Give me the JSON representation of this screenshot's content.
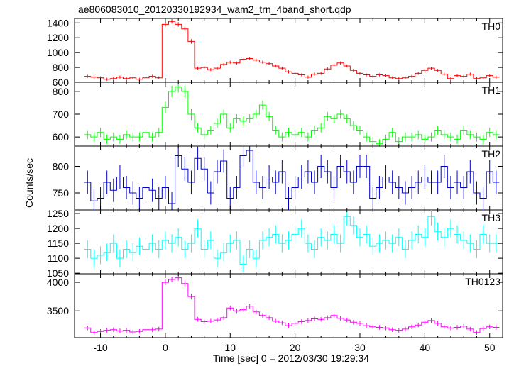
{
  "title": "ae806083010_20120330192934_wam2_trn_4band_short.qdp",
  "ylabel": "Counts/sec",
  "xlabel": "Time [sec] 0 = 2012/03/30 19:29:34",
  "chart_data": [
    {
      "type": "line",
      "name": "TH0",
      "color": "#ff0000",
      "xlim": [
        -14,
        52
      ],
      "ylim": [
        600,
        1460
      ],
      "yticks": [
        600,
        800,
        1000,
        1200,
        1400
      ],
      "bin_width": 1,
      "x": [
        -12,
        -11,
        -10,
        -9,
        -8,
        -7,
        -6,
        -5,
        -4,
        -3,
        -2,
        -1,
        0,
        1,
        2,
        3,
        4,
        5,
        6,
        7,
        8,
        9,
        10,
        11,
        12,
        13,
        14,
        15,
        16,
        17,
        18,
        19,
        20,
        21,
        22,
        23,
        24,
        25,
        26,
        27,
        28,
        29,
        30,
        31,
        32,
        33,
        34,
        35,
        36,
        37,
        38,
        39,
        40,
        41,
        42,
        43,
        44,
        45,
        46,
        47,
        48,
        49,
        50,
        51
      ],
      "y": [
        680,
        670,
        660,
        640,
        650,
        670,
        650,
        660,
        640,
        660,
        680,
        660,
        1380,
        1420,
        1380,
        1320,
        1150,
        790,
        800,
        770,
        790,
        840,
        870,
        860,
        910,
        920,
        900,
        870,
        850,
        820,
        790,
        740,
        720,
        700,
        670,
        710,
        720,
        780,
        830,
        860,
        820,
        760,
        720,
        700,
        680,
        700,
        690,
        660,
        650,
        660,
        680,
        720,
        760,
        790,
        760,
        710,
        650,
        690,
        680,
        710,
        650,
        660,
        690,
        670
      ],
      "err": [
        20,
        20,
        20,
        20,
        20,
        20,
        20,
        20,
        20,
        20,
        20,
        20,
        30,
        30,
        30,
        30,
        30,
        20,
        20,
        20,
        20,
        20,
        20,
        20,
        20,
        20,
        20,
        20,
        20,
        20,
        20,
        20,
        20,
        20,
        20,
        20,
        20,
        20,
        20,
        20,
        20,
        20,
        20,
        20,
        20,
        20,
        20,
        20,
        20,
        20,
        20,
        20,
        20,
        20,
        20,
        20,
        20,
        20,
        20,
        20,
        20,
        20,
        20,
        20
      ]
    },
    {
      "type": "line",
      "name": "TH1",
      "color": "#00ff00",
      "xlim": [
        -14,
        52
      ],
      "ylim": [
        560,
        840
      ],
      "yticks": [
        600,
        700,
        800
      ],
      "bin_width": 1,
      "x": [
        -12,
        -11,
        -10,
        -9,
        -8,
        -7,
        -6,
        -5,
        -4,
        -3,
        -2,
        -1,
        0,
        1,
        2,
        3,
        4,
        5,
        6,
        7,
        8,
        9,
        10,
        11,
        12,
        13,
        14,
        15,
        16,
        17,
        18,
        19,
        20,
        21,
        22,
        23,
        24,
        25,
        26,
        27,
        28,
        29,
        30,
        31,
        32,
        33,
        34,
        35,
        36,
        37,
        38,
        39,
        40,
        41,
        42,
        43,
        44,
        45,
        46,
        47,
        48,
        49,
        50,
        51
      ],
      "y": [
        610,
        600,
        620,
        590,
        600,
        590,
        610,
        600,
        600,
        620,
        600,
        620,
        730,
        800,
        820,
        800,
        700,
        640,
        610,
        630,
        660,
        700,
        640,
        680,
        670,
        680,
        700,
        740,
        690,
        630,
        600,
        620,
        610,
        620,
        600,
        630,
        640,
        690,
        680,
        700,
        680,
        650,
        630,
        600,
        580,
        570,
        590,
        620,
        580,
        600,
        600,
        610,
        590,
        600,
        630,
        610,
        600,
        590,
        630,
        610,
        600,
        590,
        620,
        610
      ],
      "err": [
        20,
        20,
        20,
        20,
        20,
        20,
        20,
        20,
        20,
        20,
        20,
        20,
        25,
        25,
        25,
        25,
        25,
        20,
        20,
        20,
        20,
        20,
        20,
        20,
        20,
        20,
        20,
        20,
        20,
        20,
        20,
        20,
        20,
        20,
        20,
        20,
        20,
        20,
        20,
        20,
        20,
        20,
        20,
        20,
        20,
        20,
        20,
        20,
        20,
        20,
        20,
        20,
        20,
        20,
        20,
        20,
        20,
        20,
        20,
        20,
        20,
        20,
        20,
        20
      ]
    },
    {
      "type": "line",
      "name": "TH2",
      "color": "#0000cc",
      "xlim": [
        -14,
        52
      ],
      "ylim": [
        718,
        838
      ],
      "yticks": [
        750,
        800
      ],
      "bin_width": 1,
      "x": [
        -12,
        -11,
        -10,
        -9,
        -8,
        -7,
        -6,
        -5,
        -4,
        -3,
        -2,
        -1,
        0,
        1,
        2,
        3,
        4,
        5,
        6,
        7,
        8,
        9,
        10,
        11,
        12,
        13,
        14,
        15,
        16,
        17,
        18,
        19,
        20,
        21,
        22,
        23,
        24,
        25,
        26,
        27,
        28,
        29,
        30,
        31,
        32,
        33,
        34,
        35,
        36,
        37,
        38,
        39,
        40,
        41,
        42,
        43,
        44,
        45,
        46,
        47,
        48,
        49,
        50,
        51
      ],
      "y": [
        770,
        735,
        740,
        770,
        755,
        780,
        760,
        750,
        740,
        760,
        755,
        740,
        760,
        730,
        820,
        795,
        770,
        815,
        795,
        750,
        790,
        810,
        740,
        760,
        820,
        830,
        770,
        760,
        780,
        770,
        790,
        740,
        760,
        780,
        790,
        770,
        800,
        790,
        760,
        800,
        790,
        770,
        800,
        800,
        740,
        760,
        780,
        770,
        760,
        750,
        760,
        770,
        780,
        770,
        770,
        800,
        760,
        770,
        760,
        790,
        750,
        740,
        790,
        770
      ],
      "err": [
        22,
        22,
        22,
        22,
        22,
        22,
        22,
        22,
        22,
        22,
        22,
        22,
        22,
        22,
        22,
        22,
        22,
        22,
        22,
        22,
        22,
        22,
        22,
        22,
        22,
        22,
        22,
        22,
        22,
        22,
        22,
        22,
        22,
        22,
        22,
        22,
        22,
        22,
        22,
        22,
        22,
        22,
        22,
        22,
        22,
        22,
        22,
        22,
        22,
        22,
        22,
        22,
        22,
        22,
        22,
        22,
        22,
        22,
        22,
        22,
        22,
        22,
        22,
        22
      ]
    },
    {
      "type": "line",
      "name": "TH3",
      "color": "#00ffff",
      "xlim": [
        -14,
        52
      ],
      "ylim": [
        1048,
        1262
      ],
      "yticks": [
        1050,
        1100,
        1150,
        1200,
        1250
      ],
      "bin_width": 1,
      "x": [
        -12,
        -11,
        -10,
        -9,
        -8,
        -7,
        -6,
        -5,
        -4,
        -3,
        -2,
        -1,
        0,
        1,
        2,
        3,
        4,
        5,
        6,
        7,
        8,
        9,
        10,
        11,
        12,
        13,
        14,
        15,
        16,
        17,
        18,
        19,
        20,
        21,
        22,
        23,
        24,
        25,
        26,
        27,
        28,
        29,
        30,
        31,
        32,
        33,
        34,
        35,
        36,
        37,
        38,
        39,
        40,
        41,
        42,
        43,
        44,
        45,
        46,
        47,
        48,
        49,
        50,
        51
      ],
      "y": [
        1130,
        1100,
        1110,
        1120,
        1150,
        1100,
        1130,
        1120,
        1140,
        1130,
        1150,
        1130,
        1160,
        1150,
        1170,
        1130,
        1150,
        1200,
        1130,
        1160,
        1100,
        1120,
        1150,
        1160,
        1080,
        1130,
        1100,
        1160,
        1170,
        1180,
        1150,
        1160,
        1180,
        1200,
        1150,
        1130,
        1170,
        1160,
        1180,
        1150,
        1240,
        1210,
        1170,
        1180,
        1140,
        1150,
        1160,
        1150,
        1170,
        1130,
        1160,
        1180,
        1170,
        1240,
        1190,
        1170,
        1200,
        1180,
        1160,
        1150,
        1130,
        1180,
        1150,
        1150
      ],
      "err": [
        30,
        30,
        30,
        30,
        30,
        30,
        30,
        30,
        30,
        30,
        30,
        30,
        30,
        30,
        30,
        30,
        30,
        30,
        30,
        30,
        30,
        30,
        30,
        30,
        30,
        30,
        30,
        30,
        30,
        30,
        30,
        30,
        30,
        30,
        30,
        30,
        30,
        30,
        30,
        30,
        30,
        30,
        30,
        30,
        30,
        30,
        30,
        30,
        30,
        30,
        30,
        30,
        30,
        30,
        30,
        30,
        30,
        30,
        30,
        30,
        30,
        30,
        30,
        30
      ]
    },
    {
      "type": "line",
      "name": "TH0123",
      "color": "#ff00ff",
      "xlim": [
        -14,
        52
      ],
      "ylim": [
        3030,
        4150
      ],
      "yticks": [
        3500,
        4000
      ],
      "bin_width": 1,
      "x": [
        -12,
        -11,
        -10,
        -9,
        -8,
        -7,
        -6,
        -5,
        -4,
        -3,
        -2,
        -1,
        0,
        1,
        2,
        3,
        4,
        5,
        6,
        7,
        8,
        9,
        10,
        11,
        12,
        13,
        14,
        15,
        16,
        17,
        18,
        19,
        20,
        21,
        22,
        23,
        24,
        25,
        26,
        27,
        28,
        29,
        30,
        31,
        32,
        33,
        34,
        35,
        36,
        37,
        38,
        39,
        40,
        41,
        42,
        43,
        44,
        45,
        46,
        47,
        48,
        49,
        50,
        51
      ],
      "y": [
        3200,
        3120,
        3140,
        3160,
        3170,
        3150,
        3160,
        3130,
        3140,
        3170,
        3170,
        3180,
        4000,
        4050,
        4080,
        3980,
        3750,
        3350,
        3310,
        3320,
        3340,
        3380,
        3550,
        3500,
        3520,
        3580,
        3480,
        3420,
        3380,
        3320,
        3290,
        3240,
        3280,
        3310,
        3330,
        3360,
        3350,
        3380,
        3420,
        3370,
        3340,
        3300,
        3280,
        3240,
        3220,
        3210,
        3200,
        3170,
        3160,
        3180,
        3220,
        3250,
        3300,
        3330,
        3280,
        3220,
        3200,
        3210,
        3230,
        3180,
        3120,
        3190,
        3220,
        3210
      ],
      "err": [
        40,
        40,
        40,
        40,
        40,
        40,
        40,
        40,
        40,
        40,
        40,
        40,
        50,
        50,
        50,
        50,
        50,
        40,
        40,
        40,
        40,
        40,
        40,
        40,
        40,
        40,
        40,
        40,
        40,
        40,
        40,
        40,
        40,
        40,
        40,
        40,
        40,
        40,
        40,
        40,
        40,
        40,
        40,
        40,
        40,
        40,
        40,
        40,
        40,
        40,
        40,
        40,
        40,
        40,
        40,
        40,
        40,
        40,
        40,
        40,
        40,
        40,
        40,
        40
      ]
    }
  ],
  "xticks": [
    -10,
    0,
    10,
    20,
    30,
    40,
    50
  ]
}
